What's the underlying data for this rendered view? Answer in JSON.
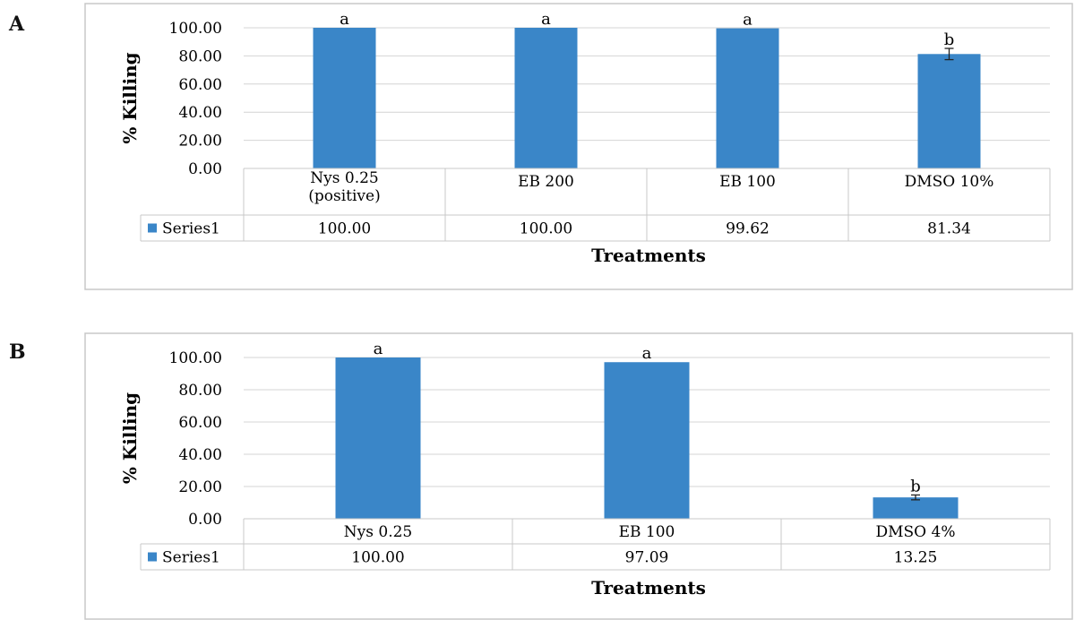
{
  "chart_data": [
    {
      "panel": "A",
      "type": "bar",
      "ylabel": "% Killing",
      "xlabel": "Treatments",
      "ylim": [
        0,
        100
      ],
      "yticks": [
        "0.00",
        "20.00",
        "40.00",
        "60.00",
        "80.00",
        "100.00"
      ],
      "categories": [
        [
          "Nys 0.25",
          "(positive)"
        ],
        [
          "EB 200"
        ],
        [
          "EB 100"
        ],
        [
          "DMSO 10%"
        ]
      ],
      "series": [
        {
          "name": "Series1",
          "color": "#3a86c8",
          "values": [
            100.0,
            100.0,
            99.62,
            81.34
          ],
          "value_labels": [
            "100.00",
            "100.00",
            "99.62",
            "81.34"
          ],
          "error": [
            0,
            0,
            0,
            4
          ]
        }
      ],
      "annotations": [
        "a",
        "a",
        "a",
        "b"
      ],
      "grid": true,
      "legend": "data-table"
    },
    {
      "panel": "B",
      "type": "bar",
      "ylabel": "% Killing",
      "xlabel": "Treatments",
      "ylim": [
        0,
        100
      ],
      "yticks": [
        "0.00",
        "20.00",
        "40.00",
        "60.00",
        "80.00",
        "100.00"
      ],
      "categories": [
        [
          "Nys 0.25"
        ],
        [
          "EB 100"
        ],
        [
          "DMSO 4%"
        ]
      ],
      "series": [
        {
          "name": "Series1",
          "color": "#3a86c8",
          "values": [
            100.0,
            97.09,
            13.25
          ],
          "value_labels": [
            "100.00",
            "97.09",
            "13.25"
          ],
          "error": [
            0,
            0,
            1.5
          ]
        }
      ],
      "annotations": [
        "a",
        "a",
        "b"
      ],
      "grid": true,
      "legend": "data-table"
    }
  ]
}
